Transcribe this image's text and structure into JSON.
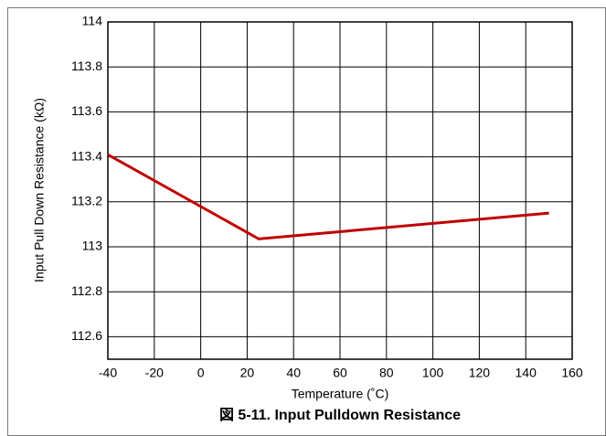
{
  "chart_data": {
    "type": "line",
    "caption": "図 5-11. Input Pulldown Resistance",
    "x_label": "Temperature (˚C)",
    "y_label": "Input Pull Down Resistance (kΩ)",
    "x": [
      -40,
      25,
      150
    ],
    "values": [
      113.41,
      113.035,
      113.15
    ],
    "color": "#c00000",
    "xlim": [
      -40,
      160
    ],
    "xticks": [
      -40,
      -20,
      0,
      20,
      40,
      60,
      80,
      100,
      120,
      140,
      160
    ],
    "ylim": [
      112.5,
      114
    ],
    "yticks": [
      112.6,
      112.8,
      113,
      113.2,
      113.4,
      113.6,
      113.8,
      114
    ],
    "grid": true
  }
}
